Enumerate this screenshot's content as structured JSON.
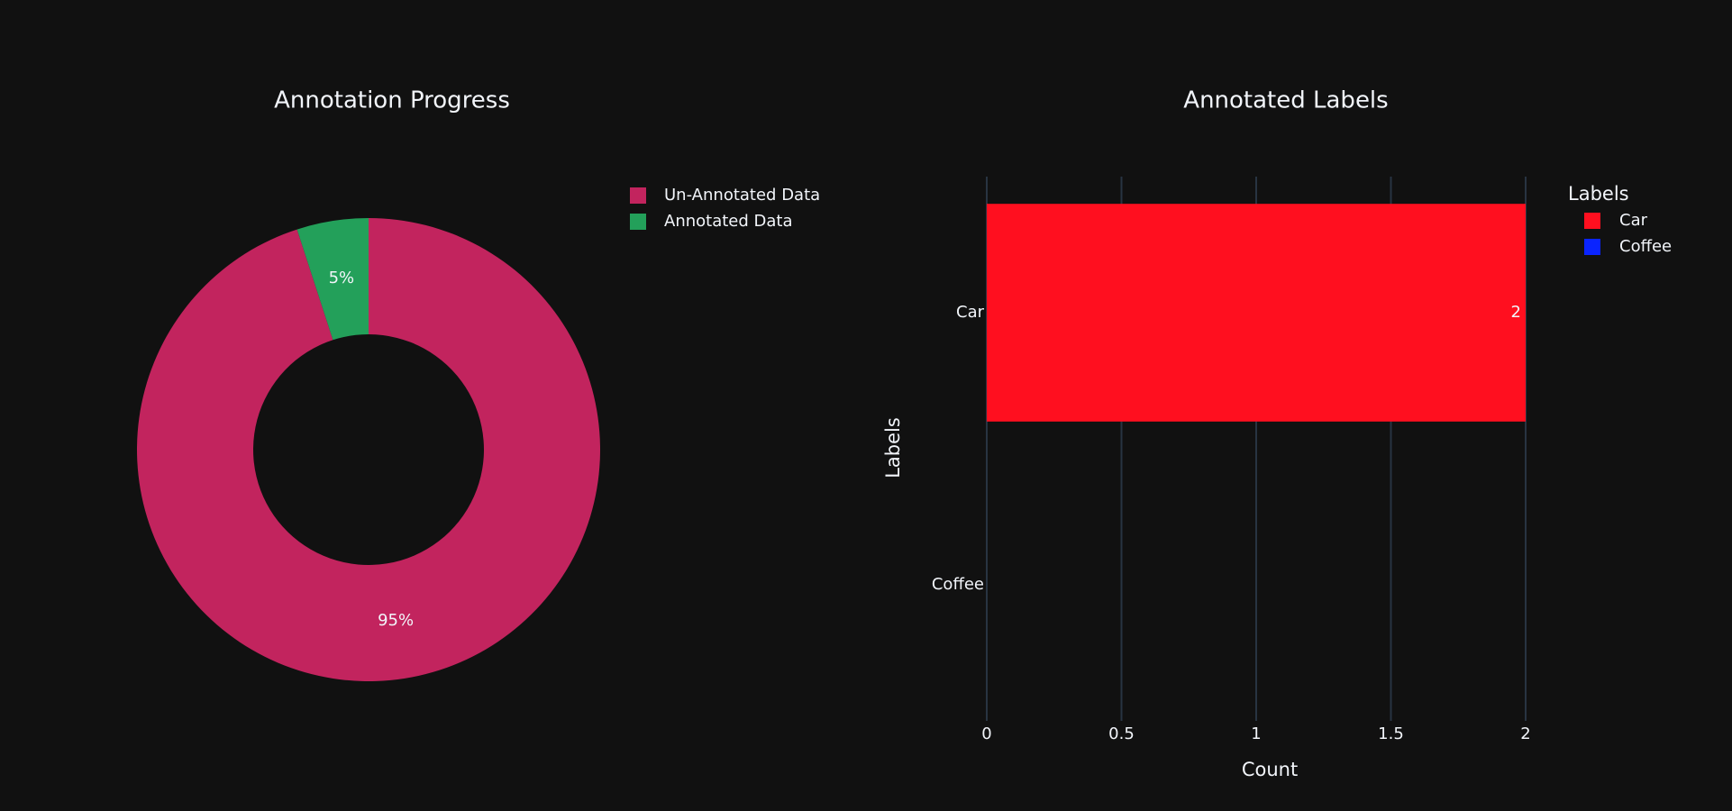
{
  "chart_data": [
    {
      "type": "pie",
      "title": "Annotation Progress",
      "categories": [
        "Un-Annotated Data",
        "Annotated Data"
      ],
      "values": [
        95,
        5
      ],
      "value_labels": [
        "95%",
        "5%"
      ],
      "colors": [
        "#c2245e",
        "#23a05a"
      ],
      "hole": true,
      "legend": "top-right"
    },
    {
      "type": "hbar",
      "title": "Annotated Labels",
      "categories": [
        "Car",
        "Coffee"
      ],
      "series": [
        {
          "name": "Car",
          "color": "#ff0f1f",
          "values": [
            2,
            null
          ]
        },
        {
          "name": "Coffee",
          "color": "#0a24ff",
          "values": [
            null,
            0
          ]
        }
      ],
      "xlabel": "Count",
      "ylabel": "Labels",
      "legend_title": "Labels",
      "xlim": [
        0,
        2
      ],
      "xticks": [
        0,
        0.5,
        1,
        1.5,
        2
      ],
      "grid": true,
      "legend": "top-right"
    }
  ]
}
